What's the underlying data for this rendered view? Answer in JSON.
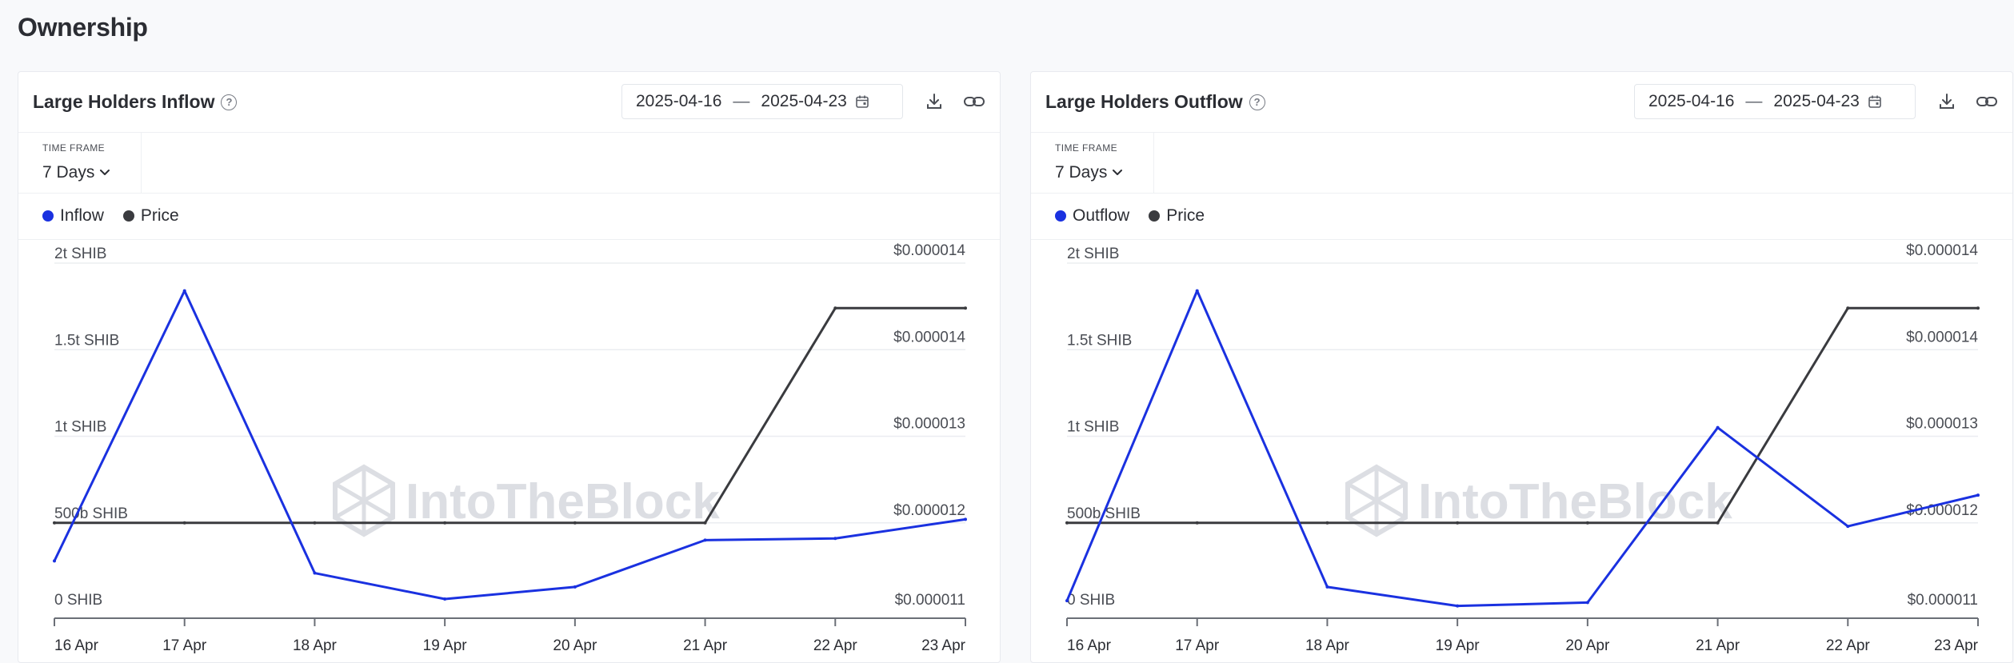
{
  "page_title": "Ownership",
  "colors": {
    "flow": "#1a31e0",
    "price": "#3a3b3f",
    "grid": "#ebedf1",
    "axis": "#6b6f77",
    "watermark": "#dcdee3"
  },
  "watermark": "IntoTheBlock",
  "chart_data": [
    {
      "type": "line",
      "title": "Large Holders Inflow",
      "date_from": "2025-04-16",
      "date_to": "2025-04-23",
      "separator": "—",
      "timeframe_label": "TIME FRAME",
      "timeframe_value": "7 Days",
      "categories": [
        "16 Apr",
        "17 Apr",
        "18 Apr",
        "19 Apr",
        "20 Apr",
        "21 Apr",
        "22 Apr",
        "23 Apr"
      ],
      "y_left": {
        "ticks": [
          "0 SHIB",
          "500b SHIB",
          "1t SHIB",
          "1.5t SHIB",
          "2t SHIB"
        ],
        "values": [
          0,
          0.5,
          1,
          1.5,
          2
        ],
        "ylim": [
          0,
          2
        ]
      },
      "y_right": {
        "ticks": [
          "$0.000011",
          "$0.000012",
          "$0.000013",
          "$0.000014",
          "$0.000014"
        ]
      },
      "series": [
        {
          "name": "Inflow",
          "axis": "left",
          "color": "#1a31e0",
          "values": [
            0.28,
            1.84,
            0.21,
            0.06,
            0.13,
            0.4,
            0.41,
            0.52
          ]
        },
        {
          "name": "Price",
          "axis": "right",
          "color": "#3a3b3f",
          "values": [
            0.5,
            0.5,
            0.5,
            0.5,
            0.5,
            0.5,
            1.74,
            1.74
          ]
        }
      ]
    },
    {
      "type": "line",
      "title": "Large Holders Outflow",
      "date_from": "2025-04-16",
      "date_to": "2025-04-23",
      "separator": "—",
      "timeframe_label": "TIME FRAME",
      "timeframe_value": "7 Days",
      "categories": [
        "16 Apr",
        "17 Apr",
        "18 Apr",
        "19 Apr",
        "20 Apr",
        "21 Apr",
        "22 Apr",
        "23 Apr"
      ],
      "y_left": {
        "ticks": [
          "0 SHIB",
          "500b SHIB",
          "1t SHIB",
          "1.5t SHIB",
          "2t SHIB"
        ],
        "values": [
          0,
          0.5,
          1,
          1.5,
          2
        ],
        "ylim": [
          0,
          2
        ]
      },
      "y_right": {
        "ticks": [
          "$0.000011",
          "$0.000012",
          "$0.000013",
          "$0.000014",
          "$0.000014"
        ]
      },
      "series": [
        {
          "name": "Outflow",
          "axis": "left",
          "color": "#1a31e0",
          "values": [
            0.05,
            1.84,
            0.13,
            0.02,
            0.04,
            1.05,
            0.48,
            0.66
          ]
        },
        {
          "name": "Price",
          "axis": "right",
          "color": "#3a3b3f",
          "values": [
            0.5,
            0.5,
            0.5,
            0.5,
            0.5,
            0.5,
            1.74,
            1.74
          ]
        }
      ]
    }
  ]
}
